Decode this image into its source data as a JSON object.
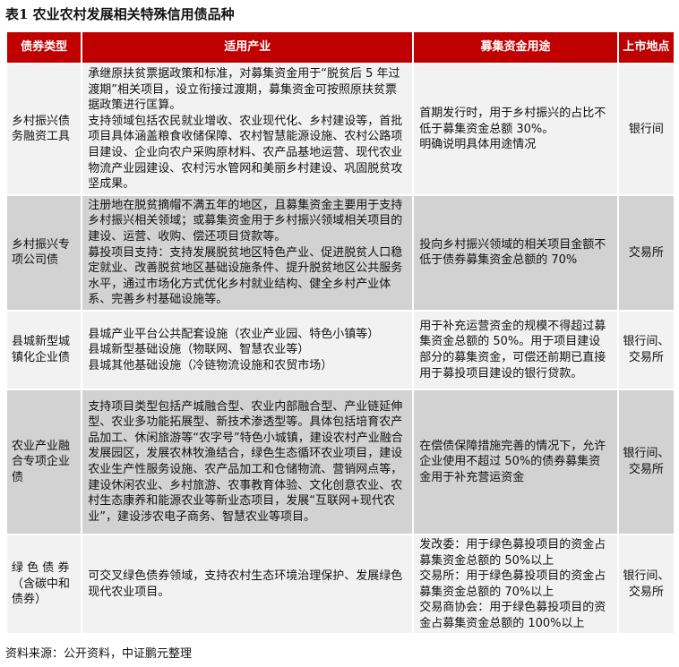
{
  "title": "表1  农业农村发展相关特殊信用债品种",
  "header": {
    "type": "债券类型",
    "industry": "适用产业",
    "use": "募集资金用途",
    "venue": "上市地点"
  },
  "colors": {
    "header_bg": "#c00000",
    "row_light": "#f2f2f2",
    "row_dark": "#d2d2d2"
  },
  "rows": [
    {
      "type": "乡村振兴债务融资工具",
      "industry": [
        "承继原扶贫票据政策和标准，对募集资金用于“脱贫后 5 年过渡期”相关项目，设立衔接过渡期，募集资金可按照原扶贫票据政策进行匡算。",
        "支持领域包括农民就业增收、农业现代化、乡村建设等，首批项目具体涵盖粮食收储保障、农村智慧能源设施、农村公路项目建设、企业向农户采购原材料、农产品基地运营、现代农业物流产业园建设、农村污水管网和美丽乡村建设、巩固脱贫攻坚成果。"
      ],
      "use": [
        "首期发行时，用于乡村振兴的占比不低于募集资金总额 30%。",
        "明确说明具体用途情况"
      ],
      "venue": "银行间"
    },
    {
      "type": "乡村振兴专项公司债",
      "industry": [
        "注册地在脱贫摘帽不满五年的地区，且募集资金主要用于支持乡村振兴相关领域；或募集资金用于乡村振兴领域相关项目的建设、运营、收购、偿还项目贷款等。",
        "募投项目支持：支持发展脱贫地区特色产业、促进脱贫人口稳定就业、改善脱贫地区基础设施条件、提升脱贫地区公共服务水平，通过市场化方式优化乡村就业结构、健全乡村产业体系、完善乡村基础设施等。"
      ],
      "use": [
        "投向乡村振兴领域的相关项目金额不低于债券募集资金总额的 70%"
      ],
      "venue": "交易所"
    },
    {
      "type": "县城新型城镇化企业债",
      "industry": [
        "县城产业平台公共配套设施（农业产业园、特色小镇等）",
        "县城新型基础设施（物联网、智慧农业等）",
        "县城其他基础设施（冷链物流设施和农贸市场）"
      ],
      "use": [
        "用于补充运营资金的规模不得超过募集资金总额的 50%。用于项目建设部分的募集资金，可偿还前期已直接用于募投项目建设的银行贷款。"
      ],
      "venue": "银行间、交易所"
    },
    {
      "type": "农业产业融合专项企业债",
      "industry": [
        "支持项目类型包括产城融合型、农业内部融合型、产业链延伸型、农业多功能拓展型、新技术渗透型等。具体包括培育农产品加工、休闲旅游等“农字号”特色小城镇，建设农村产业融合发展园区，发展农林牧渔结合，绿色生态循环农业项目，建设农业生产性服务设施、农产品加工和仓储物流、营销网点等，建设休闲农业、乡村旅游、农事教育体验、文化创意农业、农村生态康养和能源农业等新业态项目，发展“互联网+现代农业”，建设涉农电子商务、智慧农业等项目。"
      ],
      "use": [
        "在偿债保障措施完善的情况下，允许企业使用不超过 50%的债券募集资金用于补充营运资金"
      ],
      "venue": "银行间、交易所"
    },
    {
      "type": "绿 色 债 券（含碳中和债券）",
      "industry": [
        "可交叉绿色债券领域，支持农村生态环境治理保护、发展绿色现代农业项目。"
      ],
      "use": [
        "发改委：用于绿色募投项目的资金占募集资金总额的 50%以上",
        "交易所：用于绿色募投项目的资金占募集资金总额的 70%以上",
        "交易商协会：用于绿色募投项目的资金占募集资金总额的 100%以上"
      ],
      "venue": "银行间、交易所"
    }
  ],
  "source": "资料来源：公开资料，中证鹏元整理"
}
